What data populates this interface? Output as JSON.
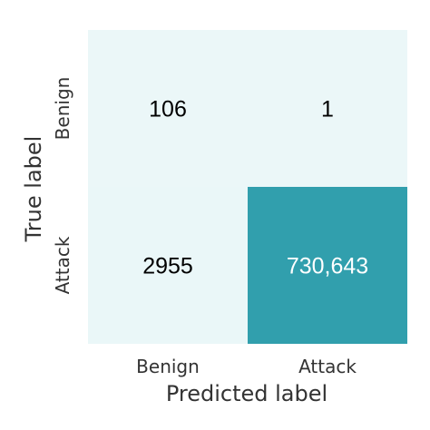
{
  "chart_data": {
    "type": "heatmap",
    "x_categories": [
      "Benign",
      "Attack"
    ],
    "y_categories": [
      "Benign",
      "Attack"
    ],
    "values": [
      [
        106,
        1
      ],
      [
        2955,
        730643
      ]
    ],
    "value_labels": [
      [
        "106",
        "1"
      ],
      [
        "2955",
        "730,643"
      ]
    ],
    "xlabel": "Predicted label",
    "ylabel": "True label",
    "colors": {
      "low": "#ebf7f8",
      "high": "#319fad",
      "text_on_low": "#000000",
      "text_on_high": "#ffffff"
    }
  }
}
